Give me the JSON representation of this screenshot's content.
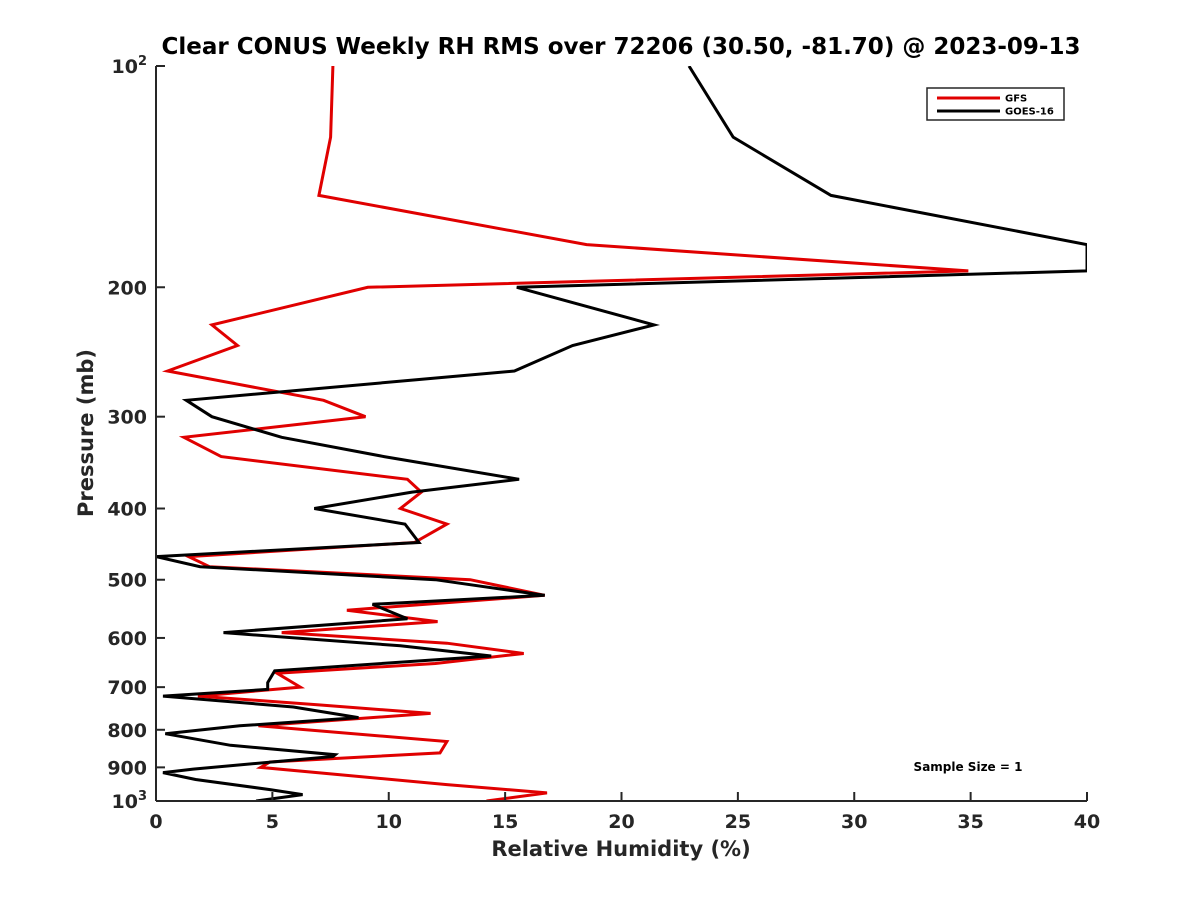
{
  "chart_data": {
    "type": "line",
    "title": "Clear CONUS Weekly RH RMS over 72206 (30.50, -81.70) @ 2023-09-13",
    "xlabel": "Relative Humidity (%)",
    "ylabel": "Pressure (mb)",
    "xlim": [
      0,
      40
    ],
    "ylim": [
      100,
      1000
    ],
    "yscale": "log",
    "y_reversed": true,
    "grid": false,
    "legend_position": "top-right",
    "x_ticks": [
      0,
      5,
      10,
      15,
      20,
      25,
      30,
      35,
      40
    ],
    "y_ticks": [
      {
        "value": 100,
        "base": "10",
        "exp": "2"
      },
      {
        "value": 200,
        "label": "200"
      },
      {
        "value": 300,
        "label": "300"
      },
      {
        "value": 400,
        "label": "400"
      },
      {
        "value": 500,
        "label": "500"
      },
      {
        "value": 600,
        "label": "600"
      },
      {
        "value": 700,
        "label": "700"
      },
      {
        "value": 800,
        "label": "800"
      },
      {
        "value": 900,
        "label": "900"
      },
      {
        "value": 1000,
        "base": "10",
        "exp": "3"
      }
    ],
    "annotation": "Sample Size = 1",
    "series": [
      {
        "name": "GFS",
        "color": "#e00000",
        "points": [
          [
            7.6,
            100
          ],
          [
            7.5,
            125
          ],
          [
            7.0,
            150
          ],
          [
            18.5,
            175
          ],
          [
            34.9,
            190
          ],
          [
            9.1,
            200
          ],
          [
            2.4,
            225
          ],
          [
            3.5,
            240
          ],
          [
            0.5,
            260
          ],
          [
            7.2,
            285
          ],
          [
            9.0,
            300
          ],
          [
            1.2,
            320
          ],
          [
            2.8,
            340
          ],
          [
            10.8,
            365
          ],
          [
            11.4,
            380
          ],
          [
            10.5,
            400
          ],
          [
            12.5,
            420
          ],
          [
            11.1,
            445
          ],
          [
            1.4,
            465
          ],
          [
            2.3,
            480
          ],
          [
            13.5,
            500
          ],
          [
            16.7,
            525
          ],
          [
            8.2,
            550
          ],
          [
            12.1,
            570
          ],
          [
            5.4,
            590
          ],
          [
            12.5,
            610
          ],
          [
            15.8,
            630
          ],
          [
            12.0,
            650
          ],
          [
            5.2,
            670
          ],
          [
            6.2,
            700
          ],
          [
            1.8,
            720
          ],
          [
            7.0,
            740
          ],
          [
            11.8,
            760
          ],
          [
            4.4,
            790
          ],
          [
            12.5,
            830
          ],
          [
            12.2,
            860
          ],
          [
            4.9,
            885
          ],
          [
            4.5,
            900
          ],
          [
            12.5,
            950
          ],
          [
            16.8,
            975
          ],
          [
            14.2,
            1000
          ]
        ]
      },
      {
        "name": "GOES-16",
        "color": "#000000",
        "points": [
          [
            22.9,
            100
          ],
          [
            24.8,
            125
          ],
          [
            29.0,
            150
          ],
          [
            40.0,
            175
          ],
          [
            40.0,
            190
          ],
          [
            15.5,
            200
          ],
          [
            21.4,
            225
          ],
          [
            17.9,
            240
          ],
          [
            15.4,
            260
          ],
          [
            1.3,
            285
          ],
          [
            2.4,
            300
          ],
          [
            5.4,
            320
          ],
          [
            9.8,
            340
          ],
          [
            15.6,
            365
          ],
          [
            11.0,
            380
          ],
          [
            6.8,
            400
          ],
          [
            10.7,
            420
          ],
          [
            11.3,
            445
          ],
          [
            0.0,
            465
          ],
          [
            1.9,
            480
          ],
          [
            12.0,
            500
          ],
          [
            16.7,
            525
          ],
          [
            9.3,
            540
          ],
          [
            10.8,
            565
          ],
          [
            2.9,
            590
          ],
          [
            10.5,
            615
          ],
          [
            14.4,
            635
          ],
          [
            5.1,
            665
          ],
          [
            4.8,
            690
          ],
          [
            4.8,
            705
          ],
          [
            0.3,
            720
          ],
          [
            5.9,
            745
          ],
          [
            8.7,
            770
          ],
          [
            3.6,
            790
          ],
          [
            0.4,
            810
          ],
          [
            3.2,
            840
          ],
          [
            7.7,
            865
          ],
          [
            7.6,
            870
          ],
          [
            1.6,
            905
          ],
          [
            0.3,
            915
          ],
          [
            1.7,
            935
          ],
          [
            4.9,
            965
          ],
          [
            6.3,
            980
          ],
          [
            4.3,
            1000
          ]
        ]
      }
    ]
  }
}
